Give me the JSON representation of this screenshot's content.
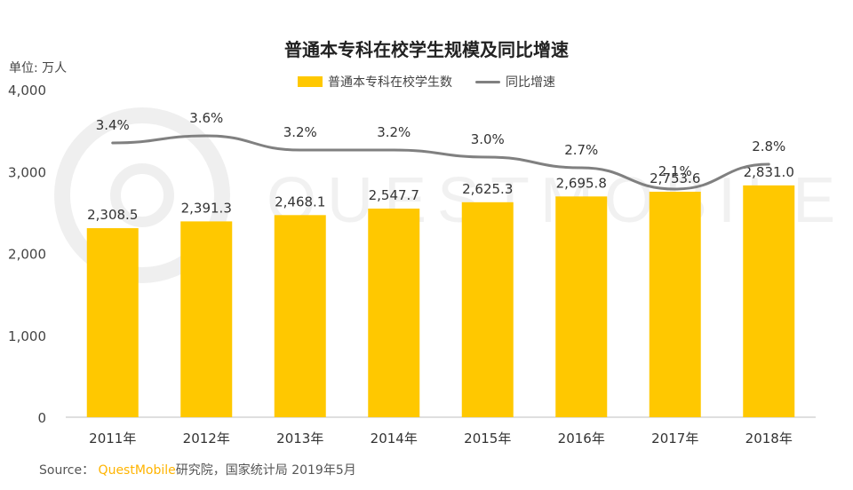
{
  "chart_data": {
    "type": "bar",
    "title": "普通本专科在校学生规模及同比增速",
    "unit_label": "单位: 万人",
    "categories": [
      "2011年",
      "2012年",
      "2013年",
      "2014年",
      "2015年",
      "2016年",
      "2017年",
      "2018年"
    ],
    "series": [
      {
        "name": "普通本专科在校学生数",
        "type": "bar",
        "color": "#FFC800",
        "values": [
          2308.5,
          2391.3,
          2468.1,
          2547.7,
          2625.3,
          2695.8,
          2753.6,
          2831.0
        ],
        "labels": [
          "2,308.5",
          "2,391.3",
          "2,468.1",
          "2,547.7",
          "2,625.3",
          "2,695.8",
          "2,753.6",
          "2,831.0"
        ]
      },
      {
        "name": "同比增速",
        "type": "line",
        "color": "#808080",
        "values": [
          3.4,
          3.6,
          3.2,
          3.2,
          3.0,
          2.7,
          2.1,
          2.8
        ],
        "labels": [
          "3.4%",
          "3.6%",
          "3.2%",
          "3.2%",
          "3.0%",
          "2.7%",
          "2.1%",
          "2.8%"
        ]
      }
    ],
    "yticks": [
      "0",
      "1,000",
      "2,000",
      "3,000",
      "4,000"
    ],
    "ylim": [
      0,
      4000
    ],
    "grid": false,
    "legend_position": "top-center"
  },
  "source": {
    "prefix": "Source：",
    "brand": "QuestMobile",
    "rest": "研究院，国家统计局 2019年5月"
  },
  "watermark": {
    "text": "QUESTMOBILE"
  }
}
